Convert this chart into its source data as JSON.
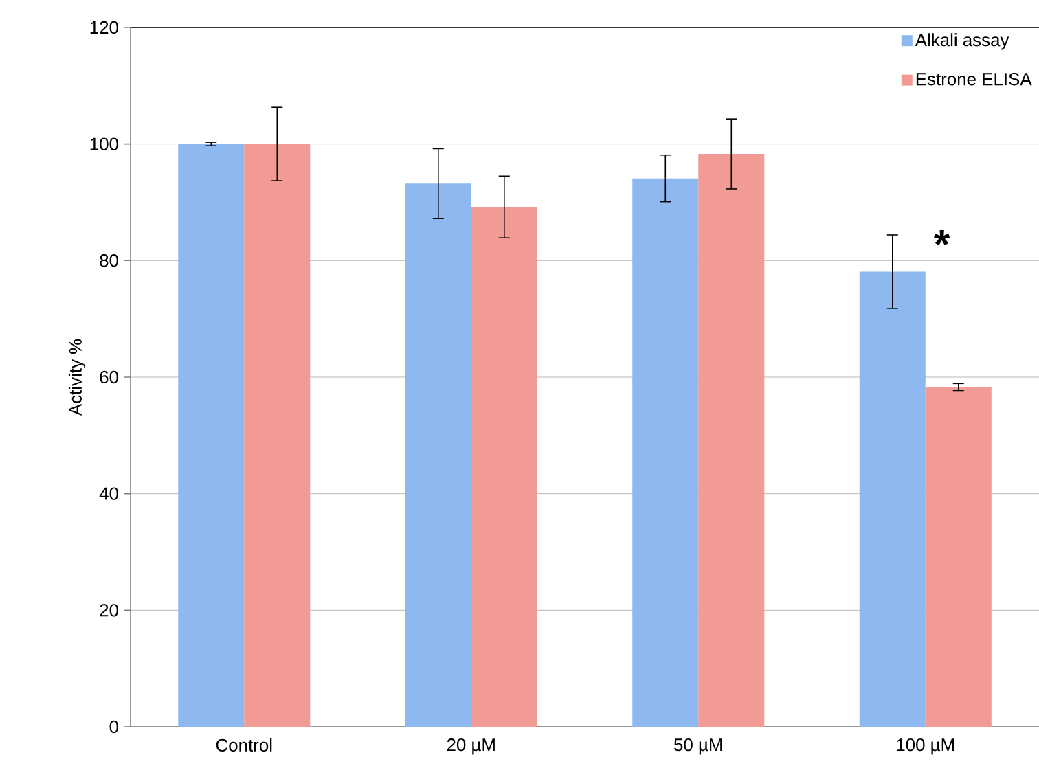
{
  "chart_data": {
    "type": "bar",
    "ylabel": "Activity %",
    "categories": [
      "Control",
      "20 µM",
      "50 µM",
      "100 µM"
    ],
    "series": [
      {
        "name": "Alkali assay",
        "color": "#8db8f0",
        "values": [
          100,
          93.2,
          94.1,
          78.1
        ],
        "errors": [
          0.3,
          6,
          4,
          6.3
        ]
      },
      {
        "name": "Estrone ELISA",
        "color": "#f29a94",
        "values": [
          100,
          89.2,
          98.3,
          58.3
        ],
        "errors": [
          6.3,
          5.3,
          6,
          0.6
        ]
      }
    ],
    "ylim": [
      0,
      120
    ],
    "yticks": [
      0,
      20,
      40,
      60,
      80,
      100,
      120
    ],
    "grid": "y",
    "legend": "top right",
    "annotations": [
      "*"
    ]
  }
}
